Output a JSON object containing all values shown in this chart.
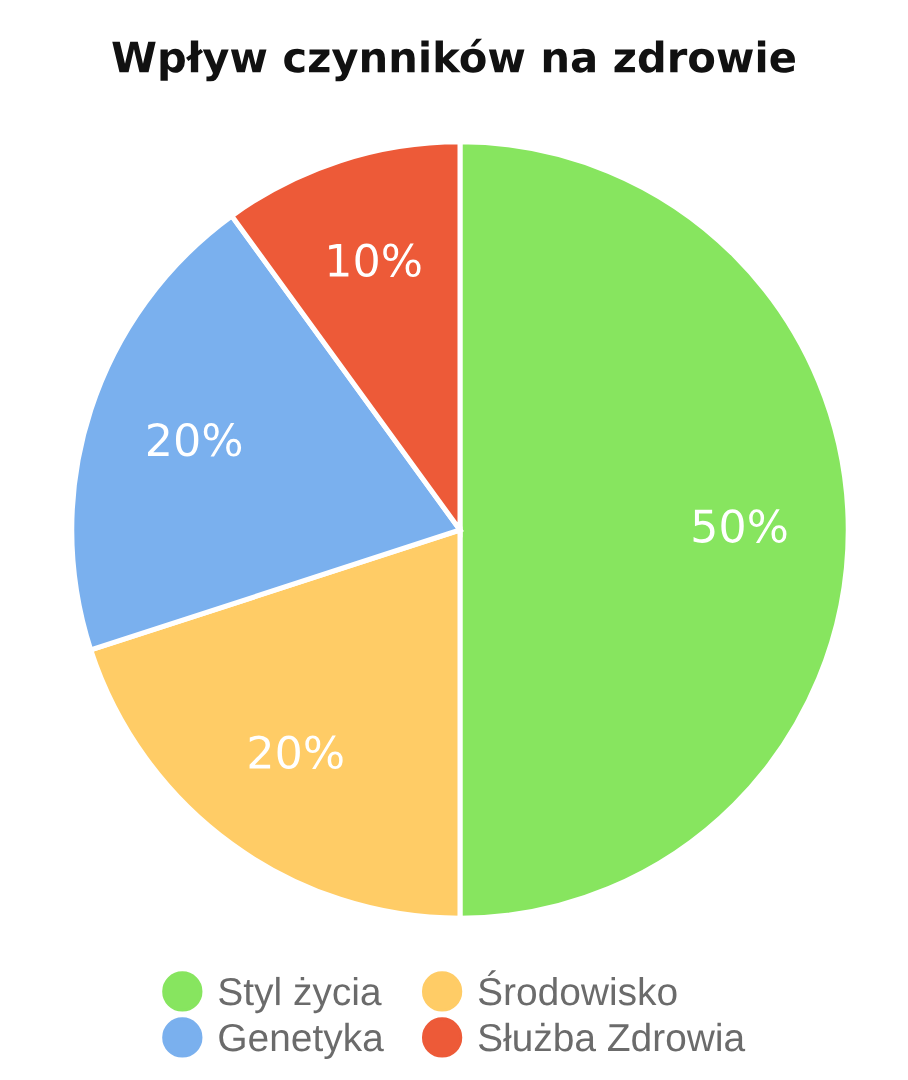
{
  "chart_data": {
    "type": "pie",
    "title": "Wpływ czynników na zdrowie",
    "categories": [
      "Styl życia",
      "Środowisko",
      "Genetyka",
      "Służba Zdrowia"
    ],
    "values": [
      50,
      20,
      20,
      10
    ],
    "colors": [
      "#87e55f",
      "#ffcc66",
      "#7ab0ee",
      "#ed5a38"
    ],
    "value_labels": [
      "50%",
      "20%",
      "20%",
      "10%"
    ],
    "legend": "bottom"
  }
}
